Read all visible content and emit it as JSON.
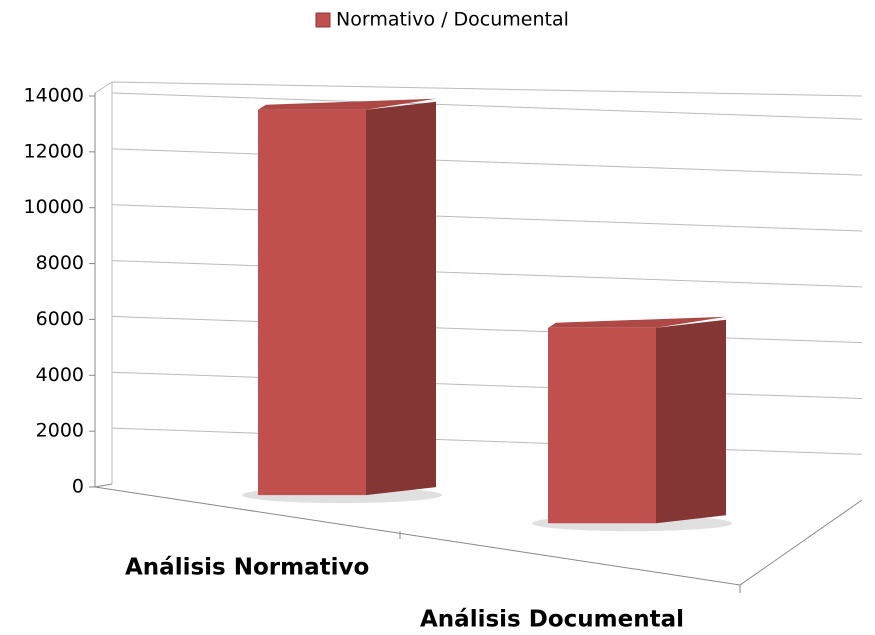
{
  "chart_data": {
    "type": "bar3d",
    "legend": "Normativo / Documental",
    "categories": [
      "Análisis Normativo",
      "Análisis Documental"
    ],
    "values": [
      13800,
      7000
    ],
    "color": "#c0504d",
    "ylim": [
      0,
      14000
    ],
    "yticks": [
      0,
      2000,
      4000,
      6000,
      8000,
      10000,
      12000,
      14000
    ],
    "grid": true
  }
}
